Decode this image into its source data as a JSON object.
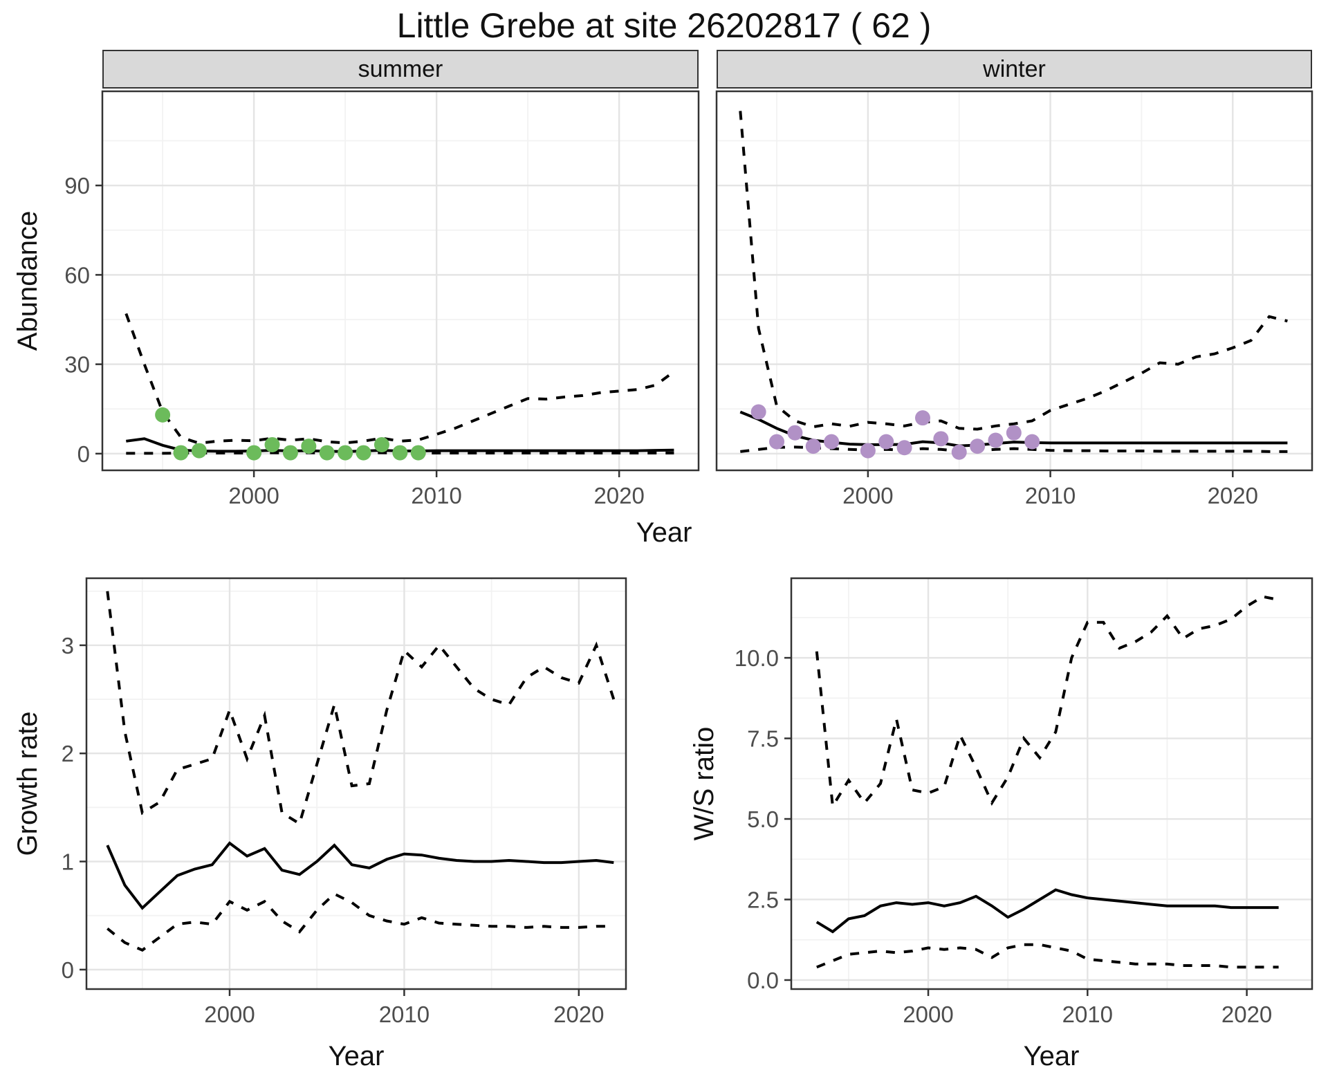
{
  "title": "Little Grebe at site 26202817 ( 62 )",
  "colors": {
    "summer_point": "#6cbb5b",
    "winter_point": "#b191c6",
    "line": "#000000",
    "strip_bg": "#d9d9d9",
    "grid_major": "#e4e4e4",
    "grid_minor": "#f2f2f2",
    "panel_border": "#333333",
    "axis_text": "#4d4d4d",
    "text": "#111111"
  },
  "axis_labels": {
    "abundance": "Abundance",
    "year_top": "Year",
    "growth_rate": "Growth rate",
    "ws_ratio": "W/S ratio",
    "year_bottom_left": "Year",
    "year_bottom_right": "Year"
  },
  "chart_data": [
    {
      "id": "summer-abundance",
      "type": "line",
      "facet_label": "summer",
      "xlabel": "Year",
      "ylabel": "Abundance",
      "xlim": [
        1991.7,
        2024.35
      ],
      "ylim": [
        -5.6,
        121.6
      ],
      "x_ticks": {
        "values": [
          2000,
          2010,
          2020
        ],
        "labels": [
          "2000",
          "2010",
          "2020"
        ]
      },
      "y_ticks": {
        "values": [
          0,
          30,
          60,
          90
        ],
        "labels": [
          "0",
          "30",
          "60",
          "90"
        ]
      },
      "x_minor": [
        1995,
        2005,
        2015
      ],
      "y_minor": [
        15,
        45,
        75,
        105
      ],
      "x": [
        1993,
        1994,
        1995,
        1996,
        1997,
        1998,
        1999,
        2000,
        2001,
        2002,
        2003,
        2004,
        2005,
        2006,
        2007,
        2008,
        2009,
        2010,
        2011,
        2012,
        2013,
        2014,
        2015,
        2016,
        2017,
        2018,
        2019,
        2020,
        2021,
        2022,
        2023
      ],
      "series": [
        {
          "name": "upper-ci",
          "style": "dashed",
          "values": [
            47,
            30,
            14,
            5.5,
            3.5,
            4.2,
            4.5,
            4.3,
            5.2,
            4.5,
            5,
            4,
            3.6,
            4.2,
            5.2,
            4.2,
            4.6,
            6.5,
            8.5,
            11,
            13.5,
            16,
            18.5,
            18.3,
            19,
            19.5,
            20.5,
            21,
            21.5,
            23,
            27.5
          ]
        },
        {
          "name": "estimate",
          "style": "solid",
          "values": [
            4.2,
            5,
            2.8,
            1.2,
            0.9,
            0.8,
            0.8,
            0.9,
            1.1,
            0.9,
            1,
            0.8,
            0.7,
            0.9,
            1.1,
            0.9,
            0.9,
            1,
            1,
            1,
            1,
            1,
            1,
            1,
            1,
            1,
            1,
            1,
            1,
            1.1,
            1.2
          ]
        },
        {
          "name": "lower-ci",
          "style": "dashed",
          "values": [
            0.1,
            0.1,
            0.1,
            0.2,
            0.2,
            0.2,
            0.2,
            0.2,
            0.3,
            0.2,
            0.3,
            0.2,
            0.2,
            0.2,
            0.3,
            0.2,
            0.2,
            0.2,
            0.2,
            0.2,
            0.2,
            0.2,
            0.2,
            0.2,
            0.2,
            0.2,
            0.2,
            0.2,
            0.2,
            0.2,
            0.2
          ]
        }
      ],
      "points": {
        "name": "observed-counts",
        "color_key": "summer_point",
        "data": [
          [
            1995,
            13
          ],
          [
            1996,
            0.3
          ],
          [
            1997,
            1
          ],
          [
            2000,
            0.3
          ],
          [
            2001,
            3
          ],
          [
            2002,
            0.3
          ],
          [
            2003,
            2.5
          ],
          [
            2004,
            0.3
          ],
          [
            2005,
            0.3
          ],
          [
            2006,
            0.3
          ],
          [
            2007,
            3
          ],
          [
            2008,
            0.3
          ],
          [
            2009,
            0.3
          ]
        ]
      }
    },
    {
      "id": "winter-abundance",
      "type": "line",
      "facet_label": "winter",
      "xlabel": "Year",
      "ylabel": "Abundance",
      "xlim": [
        1991.7,
        2024.35
      ],
      "ylim": [
        -5.6,
        121.6
      ],
      "x_ticks": {
        "values": [
          2000,
          2010,
          2020
        ],
        "labels": [
          "2000",
          "2010",
          "2020"
        ]
      },
      "y_ticks": {
        "values": [
          0,
          30,
          60,
          90
        ],
        "labels": [
          "0",
          "30",
          "60",
          "90"
        ]
      },
      "x_minor": [
        1995,
        2005,
        2015
      ],
      "y_minor": [
        15,
        45,
        75,
        105
      ],
      "x": [
        1993,
        1994,
        1995,
        1996,
        1997,
        1998,
        1999,
        2000,
        2001,
        2002,
        2003,
        2004,
        2005,
        2006,
        2007,
        2008,
        2009,
        2010,
        2011,
        2012,
        2013,
        2014,
        2015,
        2016,
        2017,
        2018,
        2019,
        2020,
        2021,
        2022,
        2023
      ],
      "series": [
        {
          "name": "upper-ci",
          "style": "dashed",
          "values": [
            115,
            42,
            16,
            11,
            9,
            10,
            9.2,
            10.5,
            10,
            9.3,
            10.5,
            11,
            8.5,
            8.2,
            9.3,
            10,
            11,
            14.5,
            16.5,
            18.5,
            21,
            24,
            27,
            30.5,
            30,
            32.5,
            33.5,
            35.5,
            38,
            46,
            44.5
          ]
        },
        {
          "name": "estimate",
          "style": "solid",
          "values": [
            14,
            11.5,
            8.5,
            6,
            4.5,
            3.8,
            3.2,
            3,
            3,
            3.1,
            4,
            3.6,
            2.6,
            2.9,
            3.4,
            3.9,
            3.7,
            3.6,
            3.6,
            3.6,
            3.6,
            3.6,
            3.6,
            3.6,
            3.6,
            3.6,
            3.6,
            3.6,
            3.6,
            3.6,
            3.6
          ]
        },
        {
          "name": "lower-ci",
          "style": "dashed",
          "values": [
            0.7,
            1.4,
            2.1,
            2.2,
            2,
            1.7,
            1.4,
            1.2,
            1.4,
            1.2,
            1.7,
            1.4,
            0.9,
            1.1,
            1.4,
            1.7,
            1.4,
            1.1,
            1,
            1,
            0.9,
            0.9,
            0.9,
            0.8,
            0.8,
            0.8,
            0.8,
            0.8,
            0.8,
            0.7,
            0.7
          ]
        }
      ],
      "points": {
        "name": "observed-counts",
        "color_key": "winter_point",
        "data": [
          [
            1994,
            14
          ],
          [
            1995,
            4
          ],
          [
            1996,
            7
          ],
          [
            1997,
            2.5
          ],
          [
            1998,
            4
          ],
          [
            2000,
            1
          ],
          [
            2001,
            4
          ],
          [
            2002,
            2
          ],
          [
            2003,
            12
          ],
          [
            2004,
            5
          ],
          [
            2005,
            0.5
          ],
          [
            2006,
            2.5
          ],
          [
            2007,
            4.5
          ],
          [
            2008,
            7
          ],
          [
            2009,
            4
          ]
        ]
      }
    },
    {
      "id": "growth-rate",
      "type": "line",
      "facet_label": "",
      "xlabel": "Year",
      "ylabel": "Growth rate",
      "xlim": [
        1991.8,
        2022.7
      ],
      "ylim": [
        -0.18,
        3.62
      ],
      "x_ticks": {
        "values": [
          2000,
          2010,
          2020
        ],
        "labels": [
          "2000",
          "2010",
          "2020"
        ]
      },
      "y_ticks": {
        "values": [
          0,
          1,
          2,
          3
        ],
        "labels": [
          "0",
          "1",
          "2",
          "3"
        ]
      },
      "x_minor": [
        1995,
        2005,
        2015
      ],
      "y_minor": [
        0.5,
        1.5,
        2.5,
        3.5
      ],
      "x": [
        1993,
        1994,
        1995,
        1996,
        1997,
        1998,
        1999,
        2000,
        2001,
        2002,
        2003,
        2004,
        2005,
        2006,
        2007,
        2008,
        2009,
        2010,
        2011,
        2012,
        2013,
        2014,
        2015,
        2016,
        2017,
        2018,
        2019,
        2020,
        2021,
        2022
      ],
      "series": [
        {
          "name": "upper-ci",
          "style": "dashed",
          "values": [
            3.5,
            2.2,
            1.45,
            1.55,
            1.85,
            1.9,
            1.95,
            2.4,
            1.95,
            2.35,
            1.45,
            1.35,
            1.9,
            2.45,
            1.7,
            1.72,
            2.4,
            2.95,
            2.8,
            3.0,
            2.8,
            2.6,
            2.5,
            2.45,
            2.7,
            2.8,
            2.7,
            2.65,
            3.0,
            2.5
          ]
        },
        {
          "name": "estimate",
          "style": "solid",
          "values": [
            1.15,
            0.78,
            0.57,
            0.72,
            0.87,
            0.93,
            0.97,
            1.17,
            1.05,
            1.12,
            0.92,
            0.88,
            1.0,
            1.15,
            0.97,
            0.94,
            1.02,
            1.07,
            1.06,
            1.03,
            1.01,
            1.0,
            1.0,
            1.01,
            1.0,
            0.99,
            0.99,
            1.0,
            1.01,
            0.99
          ]
        },
        {
          "name": "lower-ci",
          "style": "dashed",
          "values": [
            0.38,
            0.25,
            0.18,
            0.3,
            0.42,
            0.44,
            0.42,
            0.63,
            0.55,
            0.63,
            0.45,
            0.35,
            0.55,
            0.7,
            0.62,
            0.5,
            0.45,
            0.42,
            0.48,
            0.43,
            0.42,
            0.41,
            0.4,
            0.4,
            0.39,
            0.4,
            0.39,
            0.39,
            0.4,
            0.4
          ]
        }
      ],
      "points": null
    },
    {
      "id": "ws-ratio",
      "type": "line",
      "facet_label": "",
      "xlabel": "Year",
      "ylabel": "W/S ratio",
      "xlim": [
        1991.4,
        2024.1
      ],
      "ylim": [
        -0.28,
        12.47
      ],
      "x_ticks": {
        "values": [
          2000,
          2010,
          2020
        ],
        "labels": [
          "2000",
          "2010",
          "2020"
        ]
      },
      "y_ticks": {
        "values": [
          0,
          2.5,
          5,
          7.5,
          10
        ],
        "labels": [
          "0.0",
          "2.5",
          "5.0",
          "7.5",
          "10.0"
        ]
      },
      "x_minor": [
        1995,
        2005,
        2015
      ],
      "y_minor": [
        1.25,
        3.75,
        6.25,
        8.75,
        11.25
      ],
      "x": [
        1993,
        1994,
        1995,
        1996,
        1997,
        1998,
        1999,
        2000,
        2001,
        2002,
        2003,
        2004,
        2005,
        2006,
        2007,
        2008,
        2009,
        2010,
        2011,
        2012,
        2013,
        2014,
        2015,
        2016,
        2017,
        2018,
        2019,
        2020,
        2021,
        2022
      ],
      "series": [
        {
          "name": "upper-ci",
          "style": "dashed",
          "values": [
            10.2,
            5.4,
            6.2,
            5.5,
            6.1,
            8.1,
            5.9,
            5.8,
            6.0,
            7.6,
            6.6,
            5.5,
            6.3,
            7.5,
            6.9,
            7.7,
            10.0,
            11.1,
            11.1,
            10.3,
            10.5,
            10.8,
            11.3,
            10.6,
            10.9,
            11.0,
            11.2,
            11.6,
            11.9,
            11.8
          ]
        },
        {
          "name": "estimate",
          "style": "solid",
          "values": [
            1.8,
            1.5,
            1.9,
            2.0,
            2.3,
            2.4,
            2.35,
            2.4,
            2.3,
            2.4,
            2.6,
            2.3,
            1.95,
            2.2,
            2.5,
            2.8,
            2.65,
            2.55,
            2.5,
            2.45,
            2.4,
            2.35,
            2.3,
            2.3,
            2.3,
            2.3,
            2.25,
            2.25,
            2.25,
            2.25
          ]
        },
        {
          "name": "lower-ci",
          "style": "dashed",
          "values": [
            0.4,
            0.6,
            0.8,
            0.85,
            0.9,
            0.85,
            0.9,
            1.0,
            0.95,
            1.0,
            0.95,
            0.7,
            1.0,
            1.1,
            1.1,
            1.0,
            0.9,
            0.65,
            0.6,
            0.55,
            0.5,
            0.5,
            0.5,
            0.45,
            0.45,
            0.45,
            0.4,
            0.4,
            0.4,
            0.4
          ]
        }
      ],
      "points": null
    }
  ]
}
